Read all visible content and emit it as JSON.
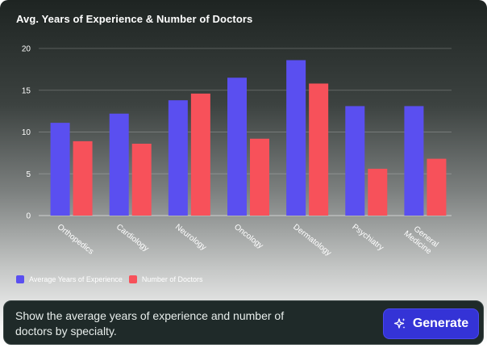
{
  "chart_data": {
    "type": "bar",
    "title": "Avg. Years of Experience & Number of Doctors",
    "categories": [
      "Orthopedics",
      "Cardiology",
      "Neurology",
      "Oncology",
      "Dermatology",
      "Psychiatry",
      "General Medicine"
    ],
    "series": [
      {
        "name": "Average Years of Experience",
        "color": "#5a4ff0",
        "values": [
          11.1,
          12.2,
          13.8,
          16.5,
          18.6,
          13.1,
          13.1
        ]
      },
      {
        "name": "Number of Doctors",
        "color": "#f7515a",
        "values": [
          8.9,
          8.6,
          14.6,
          9.2,
          15.8,
          5.6,
          6.8
        ]
      }
    ],
    "ylim": [
      0,
      20
    ],
    "yticks": [
      0,
      5,
      10,
      15,
      20
    ],
    "grid": true,
    "legend": "bottom-left"
  },
  "prompt": {
    "text": "Show the average years of experience and number of doctors by specialty."
  },
  "generate_button": {
    "label": "Generate",
    "icon": "sparkle-icon"
  }
}
